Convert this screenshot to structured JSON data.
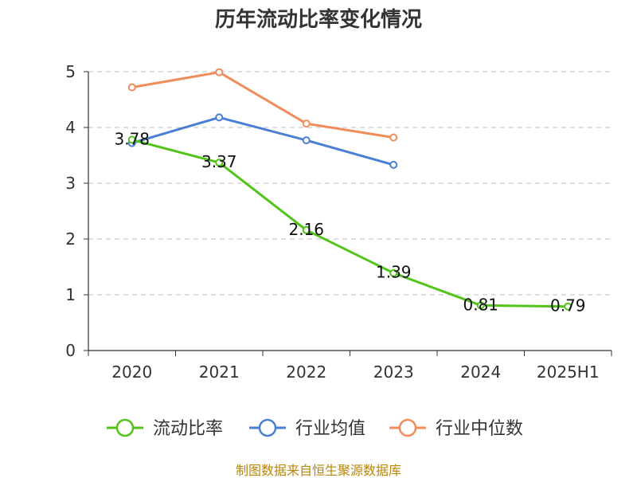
{
  "chart_data": {
    "type": "line",
    "title": "历年流动比率变化情况",
    "categories": [
      "2020",
      "2021",
      "2022",
      "2023",
      "2024",
      "2025H1"
    ],
    "ylim": [
      0,
      5
    ],
    "yticks": [
      "0",
      "1",
      "2",
      "3",
      "4",
      "5"
    ],
    "grid": true,
    "legend_position": "bottom",
    "series": [
      {
        "name": "流动比率",
        "color": "#52c41a",
        "values": [
          3.78,
          3.37,
          2.16,
          1.39,
          0.81,
          0.79
        ],
        "labels": [
          "3.78",
          "3.37",
          "2.16",
          "1.39",
          "0.81",
          "0.79"
        ]
      },
      {
        "name": "行业均值",
        "color": "#4a7fd4",
        "values": [
          3.72,
          4.18,
          3.77,
          3.33,
          null,
          null
        ]
      },
      {
        "name": "行业中位数",
        "color": "#f28c5a",
        "values": [
          4.72,
          4.99,
          4.07,
          3.82,
          null,
          null
        ]
      }
    ]
  },
  "source": "制图数据来自恒生聚源数据库"
}
